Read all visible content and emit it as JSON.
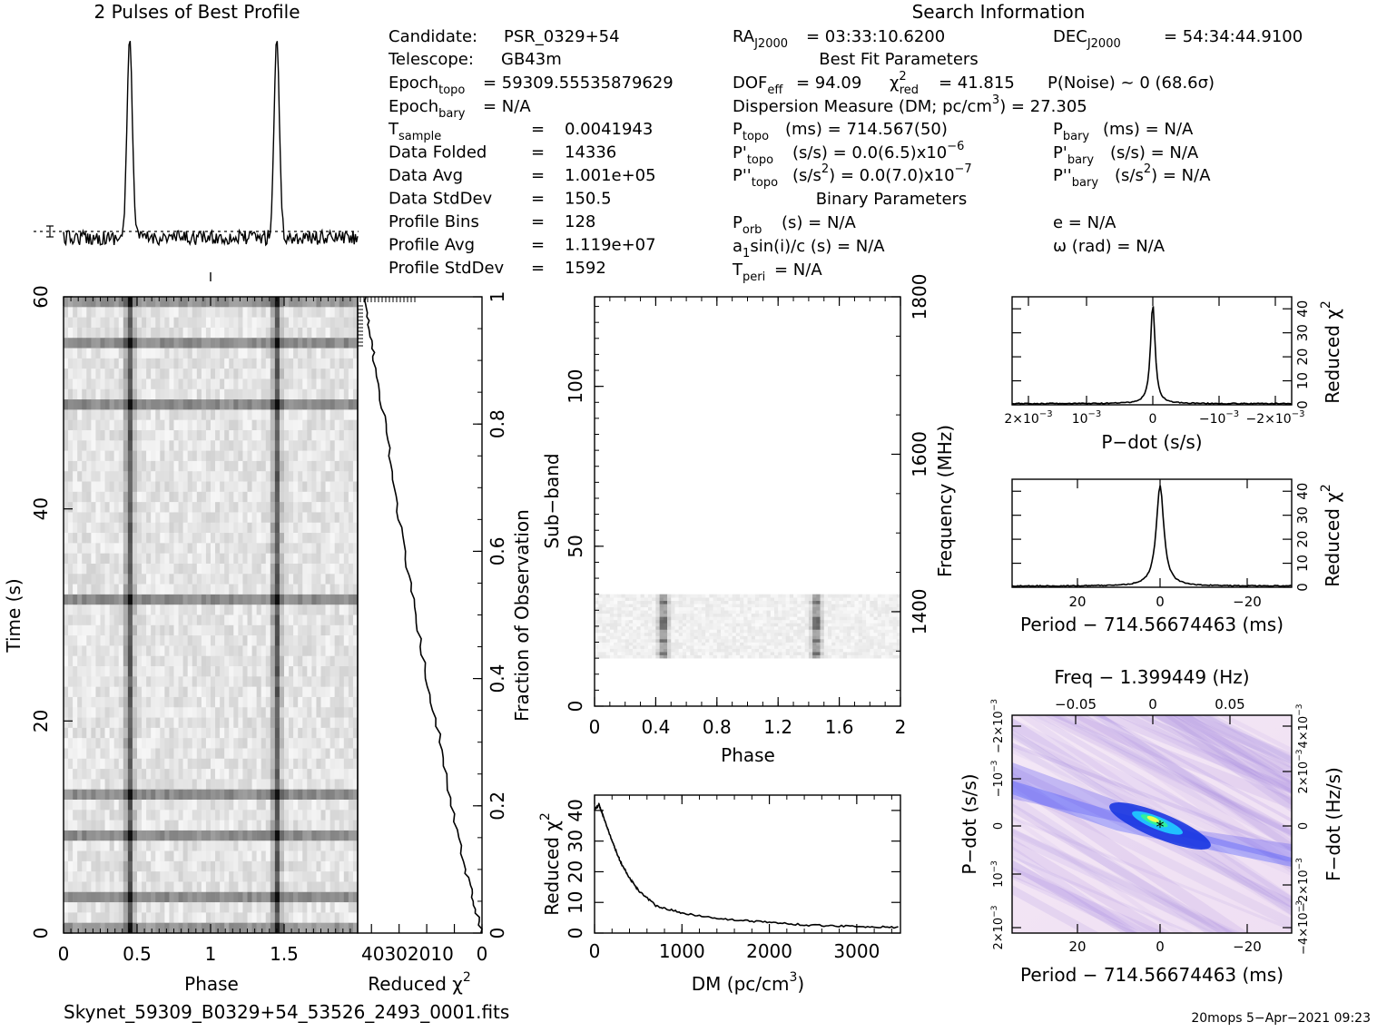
{
  "profile_title": "2 Pulses of Best Profile",
  "search_title": "Search Information",
  "info_left": {
    "candidate_label": "Candidate:",
    "candidate_value": "PSR_0329+54",
    "telescope_label": "Telescope:",
    "telescope_value": "GB43m",
    "epoch_topo_label": "Epoch",
    "epoch_topo_sub": "topo",
    "epoch_topo_value": "= 59309.55535879629",
    "epoch_bary_label": "Epoch",
    "epoch_bary_sub": "bary",
    "epoch_bary_value": "= N/A",
    "rows": [
      {
        "label": "T",
        "sub": "sample",
        "eq": "=",
        "value": "0.0041943"
      },
      {
        "label": "Data Folded",
        "sub": "",
        "eq": "=",
        "value": "14336"
      },
      {
        "label": "Data Avg",
        "sub": "",
        "eq": "=",
        "value": "1.001e+05"
      },
      {
        "label": "Data StdDev",
        "sub": "",
        "eq": "=",
        "value": "150.5"
      },
      {
        "label": "Profile Bins",
        "sub": "",
        "eq": "=",
        "value": "128"
      },
      {
        "label": "Profile Avg",
        "sub": "",
        "eq": "=",
        "value": "1.119e+07"
      },
      {
        "label": "Profile StdDev",
        "sub": "",
        "eq": "=",
        "value": "1592"
      }
    ]
  },
  "info_mid": {
    "ra_label": "RA",
    "ra_sub": "J2000",
    "ra_value": "= 03:33:10.6200",
    "best_fit_header": "Best Fit Parameters",
    "dof_label": "DOF",
    "dof_sub": "eff",
    "dof_value": "= 94.09",
    "chi_label": "χ",
    "chi_sup": "2",
    "chi_sub": "red",
    "chi_value": "= 41.815",
    "dm_line": "Dispersion Measure (DM; pc/cm",
    "dm_sup": "3",
    "dm_value": ") = 27.305",
    "ptopo_label": "P",
    "ptopo_sub": "topo",
    "ptopo_value": "(ms) =  714.567(50)",
    "pdtopo_label": "P'",
    "pdtopo_sub": "topo",
    "pdtopo_value": "(s/s) = 0.0(6.5)x10",
    "pdtopo_exp": "−6",
    "pddtopo_label": "P''",
    "pddtopo_sub": "topo",
    "pddtopo_value_a": "(s/s",
    "pddtopo_value_sup": "2",
    "pddtopo_value_b": ") = 0.0(7.0)x10",
    "pddtopo_exp": "−7",
    "binary_header": "Binary Parameters",
    "porb_label": "P",
    "porb_sub": "orb",
    "porb_value": "(s) = N/A",
    "asini_value": "a",
    "asini_sub": "1",
    "asini_rest": "sin(i)/c (s) = N/A",
    "tperi_label": "T",
    "tperi_sub": "peri",
    "tperi_value": "= N/A"
  },
  "info_right": {
    "dec_label": "DEC",
    "dec_sub": "J2000",
    "dec_value": "= 54:34:44.9100",
    "pnoise": "P(Noise) ~ 0   (68.6σ)",
    "pbary_label": "P",
    "pbary_sub": "bary",
    "pbary_value": "(ms) = N/A",
    "pdbary_label": "P'",
    "pdbary_sub": "bary",
    "pdbary_value": "(s/s) = N/A",
    "pddbary_label": "P''",
    "pddbary_sub": "bary",
    "pddbary_value_a": "(s/s",
    "pddbary_sup": "2",
    "pddbary_value_b": ") = N/A",
    "e_value": "e = N/A",
    "omega_value": "ω (rad) = N/A"
  },
  "footer": {
    "filename": "Skynet_59309_B0329+54_53526_2493_0001.fits",
    "stamp": "20mops  5−Apr−2021 09:23"
  },
  "chart_data": [
    {
      "id": "profile",
      "type": "line",
      "title": "2 Pulses of Best Profile",
      "x": "phase 0–2 (two rotations)",
      "peaks_phase": [
        0.45,
        1.45
      ]
    },
    {
      "id": "time_phase",
      "type": "heatmap",
      "xlabel": "Phase",
      "ylabel": "Time (s)",
      "xticks": [
        "0",
        "0.5",
        "1",
        "1.5"
      ],
      "yticks": [
        "0",
        "20",
        "40",
        "60"
      ],
      "xlim": [
        0,
        2
      ],
      "ylim": [
        0,
        60
      ],
      "pulse_phase": [
        0.45,
        1.45
      ]
    },
    {
      "id": "time_chi2",
      "type": "line",
      "xlabel": "Reduced χ",
      "xlabel_sup": "2",
      "xticks": [
        "40",
        "30",
        "20",
        "10",
        "0"
      ],
      "right_label": "Fraction of Observation",
      "right_ticks": [
        "0",
        "0.2",
        "0.4",
        "0.6",
        "0.8",
        "1"
      ],
      "fraction": [
        0.0,
        0.05,
        0.1,
        0.2,
        0.3,
        0.4,
        0.5,
        0.6,
        0.7,
        0.8,
        0.9,
        0.95,
        1.0
      ],
      "chi2": [
        0,
        3,
        6,
        11,
        15,
        20,
        24,
        28,
        32,
        35,
        39,
        41,
        42
      ]
    },
    {
      "id": "subband_phase",
      "type": "heatmap",
      "xlabel": "Phase",
      "ylabel": "Sub−band",
      "right_label": "Frequency (MHz)",
      "xticks": [
        "0",
        "0.4",
        "0.8",
        "1.2",
        "1.6",
        "2"
      ],
      "yticks": [
        "0",
        "50",
        "100"
      ],
      "right_ticks": [
        "1400",
        "1600",
        "1800"
      ],
      "xlim": [
        0,
        2
      ],
      "ylim": [
        0,
        128
      ],
      "data_subbands": [
        15,
        35
      ]
    },
    {
      "id": "dm_chi2",
      "type": "line",
      "xlabel": "DM (pc/cm",
      "xlabel_sup": "3",
      "ylabel": "Reduced χ",
      "ylabel_sup": "2",
      "xticks": [
        "0",
        "1000",
        "2000",
        "3000"
      ],
      "yticks": [
        "0",
        "10",
        "20",
        "30",
        "40"
      ],
      "xlim": [
        0,
        3500
      ],
      "ylim": [
        0,
        45
      ],
      "x": [
        0,
        50,
        100,
        200,
        300,
        400,
        500,
        700,
        1000,
        1500,
        2000,
        2500,
        3000,
        3500
      ],
      "y": [
        40,
        42,
        38,
        30,
        23,
        18,
        14,
        9,
        6.5,
        4.5,
        3.5,
        2.5,
        2.2,
        1.8
      ]
    },
    {
      "id": "pdot_chi2",
      "type": "line",
      "xlabel": "P−dot (s/s)",
      "ylabel": "Reduced χ",
      "ylabel_sup": "2",
      "xticks": [
        "2×10",
        "10",
        "0",
        "−10",
        "−2×10"
      ],
      "xtick_exp": "−3",
      "yticks": [
        "0",
        "10",
        "20",
        "30",
        "40"
      ],
      "xlim": [
        0.0025,
        -0.0025
      ],
      "ylim": [
        0,
        45
      ],
      "peak": 42
    },
    {
      "id": "period_chi2",
      "type": "line",
      "xlabel": "Period − 714.56674463 (ms)",
      "ylabel": "Reduced χ",
      "ylabel_sup": "2",
      "xticks": [
        "20",
        "0",
        "−20"
      ],
      "yticks": [
        "0",
        "10",
        "20",
        "30",
        "40"
      ],
      "xlim": [
        35,
        -32
      ],
      "ylim": [
        0,
        45
      ],
      "peak": 42
    },
    {
      "id": "p_pdot_plane",
      "type": "heatmap",
      "xlabel": "Period − 714.56674463 (ms)",
      "ylabel": "P−dot (s/s)",
      "top_label": "Freq − 1.399449 (Hz)",
      "right_label": "F−dot (Hz/s)",
      "xticks": [
        "20",
        "0",
        "−20"
      ],
      "top_ticks": [
        "−0.05",
        "0",
        "0.05"
      ],
      "yticks": [
        "2×10",
        "10",
        "0",
        "−10",
        "−2×10"
      ],
      "ytick_exp": "−3",
      "right_ticks": [
        "−4×10",
        "−2×10",
        "0",
        "2×10",
        "4×10"
      ],
      "right_exp": "−3"
    }
  ]
}
